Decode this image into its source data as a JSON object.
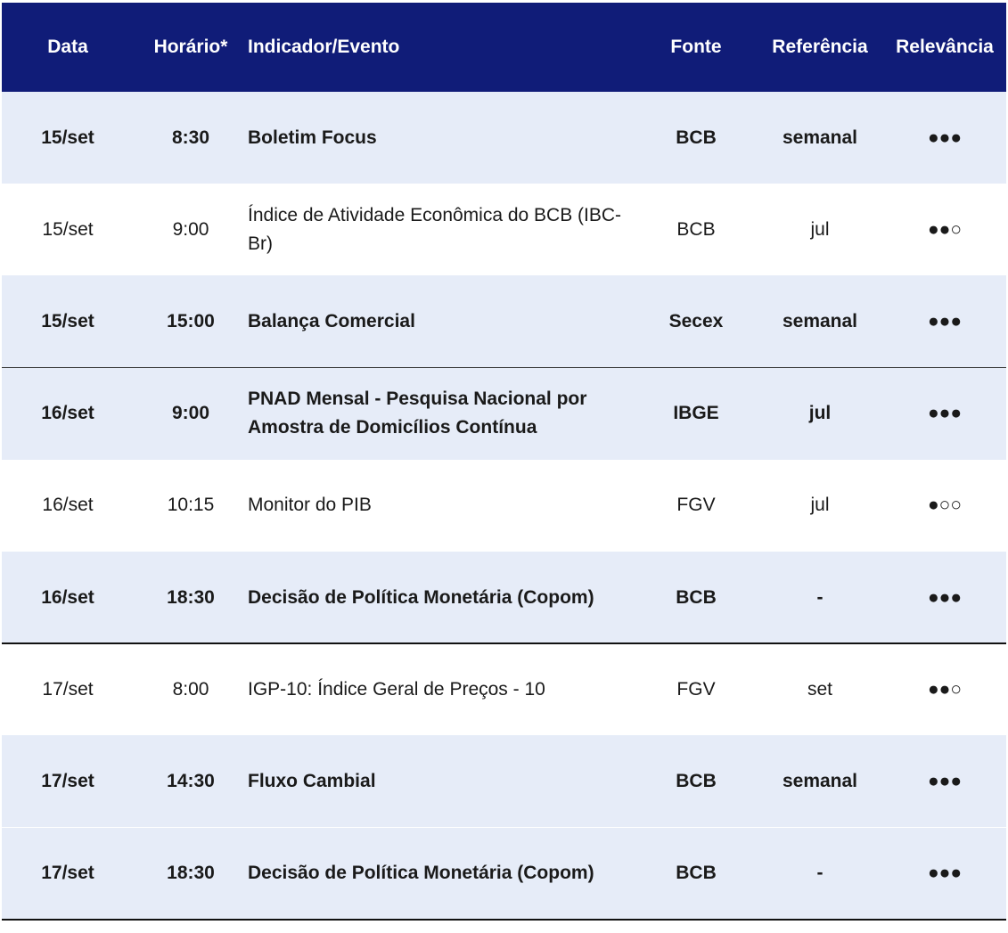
{
  "table": {
    "columns": [
      "Data",
      "Horário*",
      "Indicador/Evento",
      "Fonte",
      "Referência",
      "Relevância"
    ],
    "rows": [
      [
        "15/set",
        "8:30",
        "Boletim Focus",
        "BCB",
        "semanal",
        "●●●"
      ],
      [
        "15/set",
        "9:00",
        "Índice de Atividade Econômica do BCB (IBC-Br)",
        "BCB",
        "jul",
        "●●○"
      ],
      [
        "15/set",
        "15:00",
        "Balança Comercial",
        "Secex",
        "semanal",
        "●●●"
      ],
      [
        "16/set",
        "9:00",
        "PNAD Mensal - Pesquisa Nacional por Amostra de Domicílios Contínua",
        "IBGE",
        "jul",
        "●●●"
      ],
      [
        "16/set",
        "10:15",
        "Monitor do PIB",
        "FGV",
        "jul",
        "●○○"
      ],
      [
        "16/set",
        "18:30",
        "Decisão de Política Monetária (Copom)",
        "BCB",
        "-",
        "●●●"
      ],
      [
        "17/set",
        "8:00",
        "IGP-10: Índice Geral de Preços - 10",
        "FGV",
        "set",
        "●●○"
      ],
      [
        "17/set",
        "14:30",
        "Fluxo Cambial",
        "BCB",
        "semanal",
        "●●●"
      ],
      [
        "17/set",
        "18:30",
        "Decisão de Política Monetária (Copom)",
        "BCB",
        "-",
        "●●●"
      ]
    ]
  }
}
